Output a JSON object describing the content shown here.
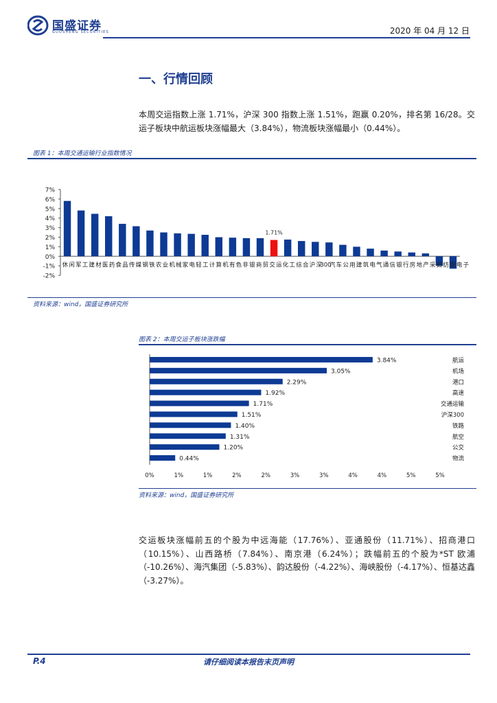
{
  "header": {
    "logo_cn": "国盛证券",
    "logo_en": "GUOSHENG SECURITIES",
    "date": "2020 年 04 月 12 日",
    "brand_color": "#1f3f91"
  },
  "section_title": "一、行情回顾",
  "intro_paragraph": "本周交运指数上涨 1.71%，沪深 300 指数上涨 1.51%，跑赢 0.20%，排名第 16/28。交运子板块中航运板块涨幅最大（3.84%），物流板块涨幅最小（0.44%）。",
  "figure1": {
    "title": "图表 1：本周交通运输行业指数情况",
    "source": "资料来源：wind，国盛证券研究所"
  },
  "figure2": {
    "title": "图表 2：本周交运子板块涨跌幅",
    "source": "资料来源：wind，国盛证券研究所"
  },
  "chart_data": [
    {
      "type": "bar",
      "title": "",
      "categories": [
        "休闲",
        "军工",
        "建材",
        "医药",
        "食品",
        "传媒",
        "钢铁",
        "农业",
        "机械",
        "家电",
        "轻工",
        "计算机",
        "有色",
        "非银",
        "商贸",
        "交运",
        "化工",
        "综合",
        "沪深300",
        "汽车",
        "公用",
        "建筑",
        "电气",
        "通信",
        "银行",
        "房地产",
        "采掘",
        "纺服",
        "电子"
      ],
      "category_labels": [
        "休",
        "闲",
        "军",
        "工",
        "建",
        "材",
        "医",
        "药",
        "食",
        "品",
        "传",
        "媒",
        "钢",
        "铁",
        "农",
        "业",
        "机",
        "械",
        "家",
        "电",
        "轻",
        "工",
        "计",
        "算",
        "机",
        "有",
        "色",
        "非",
        "银",
        "商",
        "贸",
        "交",
        "运",
        "化",
        "工",
        "综",
        "合",
        "沪",
        "深",
        "300",
        "汽",
        "车",
        "公",
        "用",
        "建",
        "筑",
        "电",
        "气",
        "通",
        "信",
        "银",
        "行",
        "房",
        "地",
        "产",
        "采",
        "掘",
        "纺",
        "服",
        "电",
        "子"
      ],
      "values": [
        5.8,
        4.8,
        4.45,
        4.2,
        3.4,
        3.15,
        2.7,
        2.5,
        2.4,
        2.35,
        2.25,
        2.0,
        1.95,
        1.9,
        1.9,
        1.71,
        1.75,
        1.6,
        1.51,
        1.45,
        1.2,
        1.0,
        0.8,
        0.6,
        0.5,
        0.4,
        0.3,
        -1.0,
        -1.3
      ],
      "highlight_index": 15,
      "highlight_label": "1.71%",
      "ylim": [
        -2,
        7
      ],
      "yticks": [
        -2,
        -1,
        0,
        1,
        2,
        3,
        4,
        5,
        6,
        7
      ],
      "ytick_labels": [
        "-2%",
        "-1%",
        "0%",
        "1%",
        "2%",
        "3%",
        "4%",
        "5%",
        "6%",
        "7%"
      ],
      "bar_color": "#0d3a94",
      "highlight_color": "#ee1111"
    },
    {
      "type": "bar",
      "orientation": "horizontal",
      "title": "",
      "categories": [
        "航运",
        "机场",
        "港口",
        "高速",
        "交通运输",
        "沪深300",
        "铁路",
        "航空",
        "公交",
        "物流"
      ],
      "values": [
        3.84,
        3.05,
        2.29,
        1.92,
        1.71,
        1.51,
        1.4,
        1.31,
        1.2,
        0.44
      ],
      "value_labels": [
        "3.84%",
        "3.05%",
        "2.29%",
        "1.92%",
        "1.71%",
        "1.51%",
        "1.40%",
        "1.31%",
        "1.20%",
        "0.44%"
      ],
      "xlim": [
        0,
        5
      ],
      "xticks": [
        0,
        0.5,
        1,
        1.5,
        2,
        2.5,
        3,
        3.5,
        4,
        4.5,
        5
      ],
      "xtick_labels": [
        "0%",
        "1%",
        "1%",
        "2%",
        "2%",
        "3%",
        "3%",
        "4%",
        "4%",
        "5%",
        "5%"
      ],
      "bar_color": "#0d3a94"
    }
  ],
  "body_paragraph": "交运板块涨幅前五的个股为中远海能（17.76%）、亚通股份（11.71%）、招商港口（10.15%）、山西路桥（7.84%）、南京港（6.24%）；跌幅前五的个股为*ST 欧浦（-10.26%）、海汽集团（-5.83%）、韵达股份（-4.22%）、海峡股份（-4.17%）、恒基达鑫（-3.27%）。",
  "footer": {
    "page": "P.4",
    "disclaimer": "请仔细阅读本报告末页声明"
  }
}
